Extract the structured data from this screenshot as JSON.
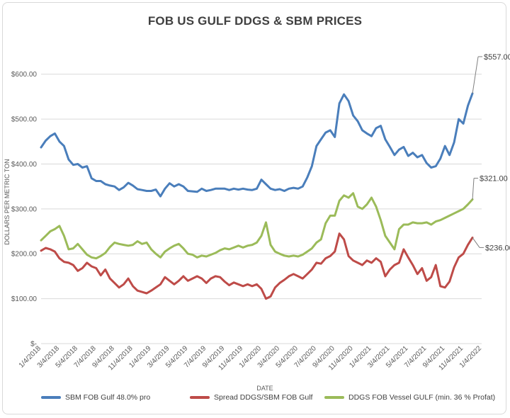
{
  "chart_data": {
    "type": "line",
    "title": "FOB US GULF DDGS & SBM PRICES",
    "xlabel": "DATE",
    "ylabel": "DOLLARS PER METRIC TON",
    "ylim": [
      0,
      650
    ],
    "y_ticks": [
      0,
      100,
      200,
      300,
      400,
      500,
      600
    ],
    "y_tick_labels": [
      "$-",
      "$100.00",
      "$200.00",
      "$300.00",
      "$400.00",
      "$500.00",
      "$600.00"
    ],
    "x_tick_labels": [
      "1/4/2018",
      "3/4/2018",
      "5/4/2018",
      "7/4/2018",
      "9/4/2018",
      "11/4/2018",
      "1/4/2019",
      "3/4/2019",
      "5/4/2019",
      "7/4/2019",
      "9/4/2019",
      "11/4/2019",
      "1/4/2020",
      "3/4/2020",
      "5/4/2020",
      "7/4/2020",
      "9/4/2020",
      "11/4/2020",
      "1/4/2021",
      "3/4/2021",
      "5/4/2021",
      "7/4/2021",
      "9/4/2021",
      "11/4/2021",
      "1/4/2022"
    ],
    "grid": true,
    "legend_position": "bottom",
    "x_months": [
      0,
      0.5,
      1,
      1.5,
      2,
      2.5,
      3,
      3.5,
      4,
      4.5,
      5,
      5.5,
      6,
      6.5,
      7,
      7.5,
      8,
      8.5,
      9,
      9.5,
      10,
      10.5,
      11,
      11.5,
      12,
      12.5,
      13,
      13.5,
      14,
      14.5,
      15,
      15.5,
      16,
      16.5,
      17,
      17.5,
      18,
      18.5,
      19,
      19.5,
      20,
      20.5,
      21,
      21.5,
      22,
      22.5,
      23,
      23.5,
      24,
      24.5,
      25,
      25.5,
      26,
      26.5,
      27,
      27.5,
      28,
      28.5,
      29,
      29.5,
      30,
      30.5,
      31,
      31.5,
      32,
      32.5,
      33,
      33.5,
      34,
      34.5,
      35,
      35.5,
      36,
      36.5,
      37,
      37.5,
      38,
      38.5,
      39,
      39.5,
      40,
      40.5,
      41,
      41.5,
      42,
      42.5,
      43,
      43.5,
      44,
      44.5,
      45,
      45.5,
      46,
      46.5,
      47
    ],
    "series": [
      {
        "name": "SBM FOB Gulf 48.0% pro",
        "color": "#4a7ebb",
        "values": [
          437,
          452,
          462,
          468,
          450,
          440,
          410,
          398,
          400,
          392,
          395,
          368,
          362,
          362,
          355,
          352,
          350,
          342,
          348,
          358,
          352,
          344,
          342,
          340,
          340,
          343,
          328,
          345,
          357,
          350,
          355,
          350,
          340,
          339,
          338,
          345,
          340,
          342,
          345,
          345,
          345,
          342,
          345,
          343,
          345,
          343,
          342,
          345,
          365,
          355,
          345,
          342,
          344,
          340,
          345,
          347,
          345,
          350,
          370,
          395,
          440,
          455,
          470,
          475,
          460,
          535,
          555,
          540,
          508,
          495,
          475,
          468,
          462,
          480,
          485,
          455,
          438,
          420,
          432,
          438,
          418,
          425,
          415,
          420,
          402,
          392,
          395,
          412,
          440,
          420,
          448,
          500,
          490,
          530,
          557
        ]
      },
      {
        "name": "Spread DDGS/SBM FOB Gulf",
        "color": "#be4b48",
        "values": [
          207,
          213,
          210,
          205,
          190,
          182,
          180,
          175,
          162,
          168,
          180,
          172,
          168,
          152,
          165,
          145,
          135,
          125,
          132,
          145,
          128,
          118,
          115,
          112,
          118,
          125,
          132,
          148,
          140,
          132,
          140,
          150,
          140,
          145,
          150,
          145,
          135,
          145,
          150,
          148,
          138,
          130,
          136,
          132,
          128,
          132,
          128,
          132,
          122,
          100,
          105,
          125,
          135,
          142,
          150,
          155,
          150,
          145,
          155,
          165,
          180,
          178,
          190,
          195,
          205,
          245,
          232,
          195,
          185,
          180,
          175,
          185,
          180,
          190,
          182,
          150,
          165,
          175,
          180,
          210,
          192,
          175,
          155,
          168,
          140,
          148,
          175,
          128,
          125,
          138,
          170,
          192,
          200,
          220,
          236
        ]
      },
      {
        "name": "DDGS FOB Vessel GULF  (min. 36 % Profat)",
        "color": "#9bbb59",
        "values": [
          230,
          240,
          250,
          255,
          262,
          240,
          210,
          212,
          222,
          210,
          198,
          192,
          190,
          195,
          202,
          215,
          225,
          222,
          220,
          218,
          220,
          228,
          222,
          225,
          210,
          200,
          192,
          205,
          212,
          218,
          222,
          212,
          200,
          198,
          192,
          196,
          194,
          198,
          202,
          208,
          212,
          210,
          214,
          218,
          214,
          218,
          220,
          225,
          240,
          270,
          220,
          205,
          200,
          196,
          194,
          196,
          194,
          198,
          205,
          212,
          225,
          232,
          268,
          285,
          285,
          318,
          330,
          325,
          335,
          305,
          300,
          310,
          325,
          305,
          275,
          240,
          225,
          210,
          255,
          265,
          265,
          270,
          268,
          268,
          270,
          265,
          272,
          275,
          280,
          285,
          290,
          295,
          300,
          310,
          321
        ]
      }
    ],
    "annotations": [
      "$557.00",
      "$321.00",
      "$236.00"
    ]
  }
}
